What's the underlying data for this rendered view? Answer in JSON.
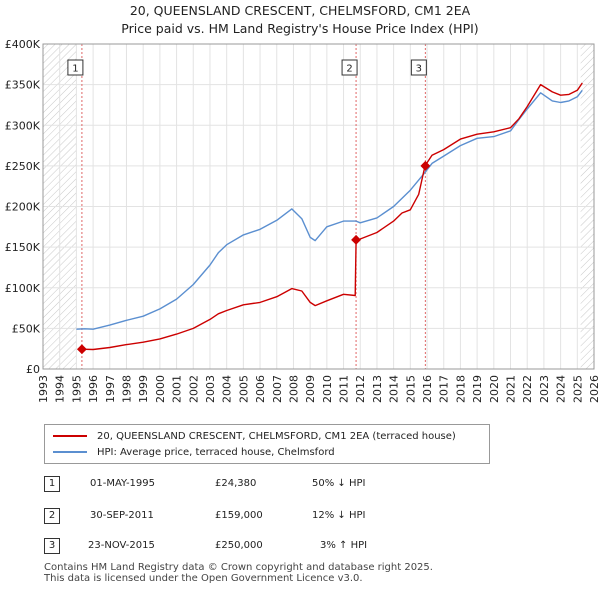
{
  "chart_data": {
    "type": "line",
    "title": "20, QUEENSLAND CRESCENT, CHELMSFORD, CM1 2EA",
    "subtitle": "Price paid vs. HM Land Registry's House Price Index (HPI)",
    "xlim": [
      1993,
      2026
    ],
    "ylim": [
      0,
      400000
    ],
    "x_ticks": [
      "1993",
      "1994",
      "1995",
      "1996",
      "1997",
      "1998",
      "1999",
      "2000",
      "2001",
      "2002",
      "2003",
      "2004",
      "2005",
      "2006",
      "2007",
      "2008",
      "2009",
      "2010",
      "2011",
      "2012",
      "2013",
      "2014",
      "2015",
      "2016",
      "2017",
      "2018",
      "2019",
      "2020",
      "2021",
      "2022",
      "2023",
      "2024",
      "2025",
      "2026"
    ],
    "y_ticks": [
      {
        "value": 0,
        "label": "£0"
      },
      {
        "value": 50000,
        "label": "£50K"
      },
      {
        "value": 100000,
        "label": "£100K"
      },
      {
        "value": 150000,
        "label": "£150K"
      },
      {
        "value": 200000,
        "label": "£200K"
      },
      {
        "value": 250000,
        "label": "£250K"
      },
      {
        "value": 300000,
        "label": "£300K"
      },
      {
        "value": 350000,
        "label": "£350K"
      },
      {
        "value": 400000,
        "label": "£400K"
      }
    ],
    "hatched_before": 1995.0,
    "hatched_after": 2025.2,
    "series": [
      {
        "name": "20, QUEENSLAND CRESCENT, CHELMSFORD, CM1 2EA (terraced house)",
        "color": "#cc0000",
        "x": [
          1995.33,
          1996,
          1997,
          1998,
          1999,
          2000,
          2001,
          2002,
          2003,
          2003.5,
          2004,
          2005,
          2006,
          2007,
          2007.9,
          2008.5,
          2009.0,
          2009.3,
          2010,
          2011,
          2011.7,
          2011.75,
          2012,
          2013,
          2014,
          2014.5,
          2015.0,
          2015.5,
          2015.88,
          2016.3,
          2017,
          2018,
          2019,
          2020,
          2021,
          2021.5,
          2022,
          2022.8,
          2023.5,
          2024,
          2024.5,
          2025.0,
          2025.3
        ],
        "values": [
          24380,
          24000,
          26500,
          30000,
          33000,
          37000,
          43000,
          50000,
          61000,
          68000,
          72000,
          79000,
          82000,
          89000,
          99000,
          96000,
          82000,
          78000,
          84000,
          92000,
          90500,
          159000,
          160000,
          168000,
          182000,
          192000,
          196000,
          215000,
          250000,
          263000,
          270000,
          283000,
          289000,
          292000,
          297000,
          308000,
          323000,
          350000,
          341000,
          337000,
          338000,
          343000,
          352000
        ]
      },
      {
        "name": "HPI: Average price, terraced house, Chelmsford",
        "color": "#5b8fd0",
        "x": [
          1995.0,
          1995.5,
          1996,
          1997,
          1998,
          1999,
          2000,
          2001,
          2002,
          2003,
          2003.5,
          2004,
          2005,
          2006,
          2007,
          2007.9,
          2008.5,
          2009.0,
          2009.3,
          2010,
          2011,
          2011.75,
          2012,
          2013,
          2014,
          2015,
          2015.88,
          2016.3,
          2017,
          2018,
          2019,
          2020,
          2021,
          2021.5,
          2022,
          2022.8,
          2023.5,
          2024,
          2024.5,
          2025.0,
          2025.3
        ],
        "values": [
          49000,
          49500,
          49000,
          54000,
          60000,
          65000,
          74000,
          86000,
          104000,
          128000,
          143000,
          153000,
          165000,
          172000,
          183000,
          197000,
          185000,
          162000,
          158000,
          175000,
          182000,
          182000,
          180000,
          186000,
          200000,
          220000,
          242000,
          253000,
          262000,
          275000,
          284000,
          286000,
          293000,
          307000,
          320000,
          340000,
          330000,
          328000,
          330000,
          335000,
          343000
        ]
      }
    ],
    "markers": [
      {
        "label": "1",
        "x": 1995.33,
        "y": 24380
      },
      {
        "label": "2",
        "x": 2011.75,
        "y": 159000
      },
      {
        "label": "3",
        "x": 2015.9,
        "y": 250000
      }
    ]
  },
  "transactions": [
    {
      "num": "1",
      "date": "01-MAY-1995",
      "price": "£24,380",
      "hpi": "50% ↓ HPI"
    },
    {
      "num": "2",
      "date": "30-SEP-2011",
      "price": "£159,000",
      "hpi": "12% ↓ HPI"
    },
    {
      "num": "3",
      "date": "23-NOV-2015",
      "price": "£250,000",
      "hpi": "3% ↑ HPI"
    }
  ],
  "footer": {
    "line1": "Contains HM Land Registry data © Crown copyright and database right 2025.",
    "line2": "This data is licensed under the Open Government Licence v3.0."
  }
}
